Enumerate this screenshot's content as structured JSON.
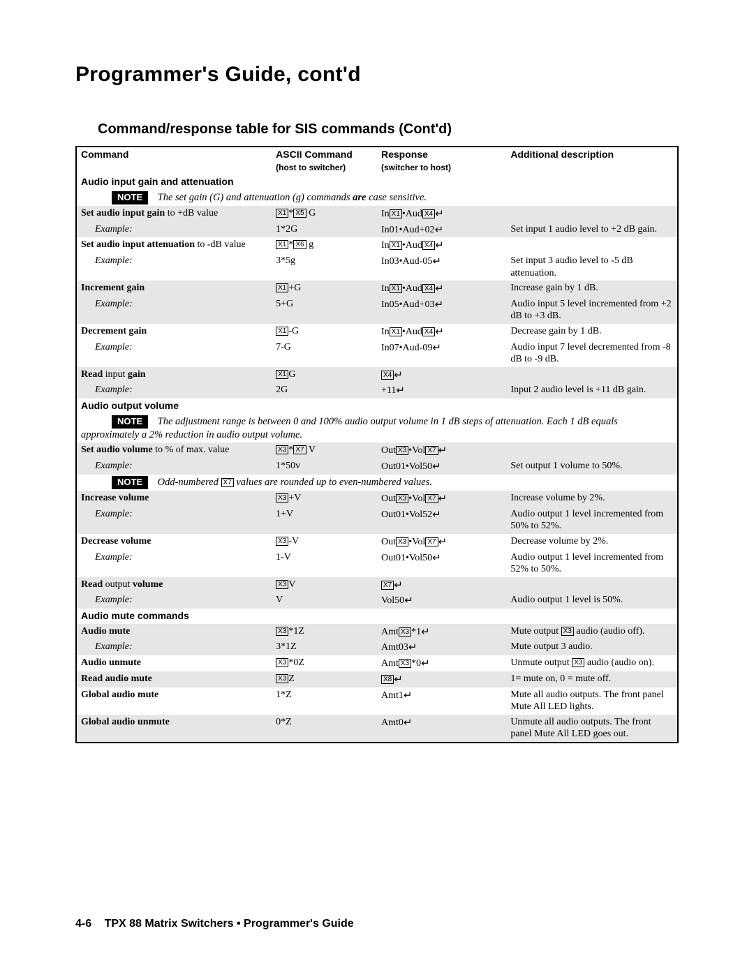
{
  "page_title": "Programmer's Guide, cont'd",
  "section_title": "Command/response table for SIS commands (Cont'd)",
  "headers": {
    "c1": "Command",
    "c2": "ASCII Command",
    "c2sub": "(host to switcher)",
    "c3": "Response",
    "c3sub": "(switcher to host)",
    "c4": "Additional description"
  },
  "note_label": "NOTE",
  "groups": {
    "g1": {
      "title": "Audio input gain and attenuation",
      "note_pre": "The set gain (G) and attenuation (g) commands ",
      "note_b": "are",
      "note_post": " case sensitive."
    },
    "g2": {
      "title": "Audio output volume",
      "note": "The adjustment range is between 0 and 100% audio output volume in 1 dB steps of attenuation. Each 1 dB equals approximately a 2% reduction in audio output volume.",
      "note2_pre": "Odd-numbered ",
      "note2_post": " values are rounded up to even-numbered values."
    },
    "g3": {
      "title": "Audio mute commands"
    }
  },
  "r": {
    "r1": {
      "c1b": "Set audio input gain ",
      "c1n": "to +dB value",
      "c2": "X1*X5 G",
      "c3": "InX1•AudX4↵",
      "c4": ""
    },
    "r1e": {
      "c1": "Example:",
      "c2": "1*2G",
      "c3": "In01•Aud+02↵",
      "c4": "Set input 1 audio level to +2 dB gain."
    },
    "r2": {
      "c1b": "Set audio input attenuation ",
      "c1n": "to -dB value",
      "c2": "X1*X6 g",
      "c3": "InX1•AudX4↵",
      "c4": ""
    },
    "r2e": {
      "c1": "Example:",
      "c2": "3*5g",
      "c3": "In03•Aud-05↵",
      "c4": "Set input 3 audio level to -5 dB attenuation."
    },
    "r3": {
      "c1b": "Increment gain",
      "c2": "X1+G",
      "c3": "InX1•AudX4↵",
      "c4": "Increase gain by 1 dB."
    },
    "r3e": {
      "c1": "Example:",
      "c2": "5+G",
      "c3": "In05•Aud+03↵",
      "c4": "Audio input 5 level incremented from +2 dB to +3 dB."
    },
    "r4": {
      "c1b": "Decrement gain",
      "c2": "X1-G",
      "c3": "InX1•AudX4↵",
      "c4": "Decrease gain by 1 dB."
    },
    "r4e": {
      "c1": "Example:",
      "c2": "7-G",
      "c3": "In07•Aud-09↵",
      "c4": "Audio input 7 level decremented from -8 dB to -9 dB."
    },
    "r5": {
      "c1b": "Read ",
      "c1n": "input ",
      "c1b2": "gain",
      "c2": "X1G",
      "c3": "X4↵",
      "c4": ""
    },
    "r5e": {
      "c1": "Example:",
      "c2": "2G",
      "c3": "+11↵",
      "c4": "Input 2 audio level is +11 dB gain."
    },
    "r6": {
      "c1b": "Set audio volume ",
      "c1n": "to % of max. value",
      "c2": "X3*X7 V",
      "c3": "OutX3•VolX7↵",
      "c4": ""
    },
    "r6e": {
      "c1": "Example:",
      "c2": "1*50v",
      "c3": "Out01•Vol50↵",
      "c4": "Set output 1 volume to 50%."
    },
    "r7": {
      "c1b": "Increase volume",
      "c2": "X3+V",
      "c3": "OutX3•VolX7↵",
      "c4": "Increase volume by 2%."
    },
    "r7e": {
      "c1": "Example:",
      "c2": "1+V",
      "c3": "Out01•Vol52↵",
      "c4": "Audio output 1 level incremented from 50% to 52%."
    },
    "r8": {
      "c1b": "Decrease volume",
      "c2": "X3-V",
      "c3": "OutX3•VolX7↵",
      "c4": "Decrease volume by 2%."
    },
    "r8e": {
      "c1": "Example:",
      "c2": "1-V",
      "c3": "Out01•Vol50↵",
      "c4": "Audio output 1 level incremented from 52% to 50%."
    },
    "r9": {
      "c1b": "Read ",
      "c1n": "output ",
      "c1b2": "volume",
      "c2": "X3V",
      "c3": "X7↵",
      "c4": ""
    },
    "r9e": {
      "c1": "Example:",
      "c2": "V",
      "c3": "Vol50↵",
      "c4": "Audio output 1 level is 50%."
    },
    "r10": {
      "c1b": "Audio mute",
      "c2": "X3*1Z",
      "c3": "AmtX3*1↵",
      "c4": "Mute output X3 audio (audio off)."
    },
    "r10e": {
      "c1": "Example:",
      "c2": "3*1Z",
      "c3": "Amt03↵",
      "c4": "Mute output 3 audio."
    },
    "r11": {
      "c1b": "Audio unmute",
      "c2": "X3*0Z",
      "c3": "AmtX3*0↵",
      "c4": "Unmute output X3 audio (audio on)."
    },
    "r12": {
      "c1b": "Read audio mute",
      "c2": "X3Z",
      "c3": "X8↵",
      "c4": "1= mute on, 0 = mute off."
    },
    "r13": {
      "c1b": "Global audio mute",
      "c2": "1*Z",
      "c3": "Amt1↵",
      "c4": "Mute all audio outputs.  The front panel Mute All LED lights."
    },
    "r14": {
      "c1b": "Global audio unmute",
      "c2": "0*Z",
      "c3": "Amt0↵",
      "c4": "Unmute all audio outputs.  The front panel Mute All LED goes out."
    }
  },
  "footer": {
    "pagenum": "4-6",
    "t1": "TPX 88 Matrix Switchers • ",
    "t2": "Programmer's Guide"
  },
  "colors": {
    "shade": "#e6e6e6",
    "border": "#000000",
    "bg": "#ffffff"
  },
  "fontsizes": {
    "page_title": 30,
    "section_title": 20,
    "header": 16,
    "body": 14,
    "subh": 12,
    "var": 10
  }
}
